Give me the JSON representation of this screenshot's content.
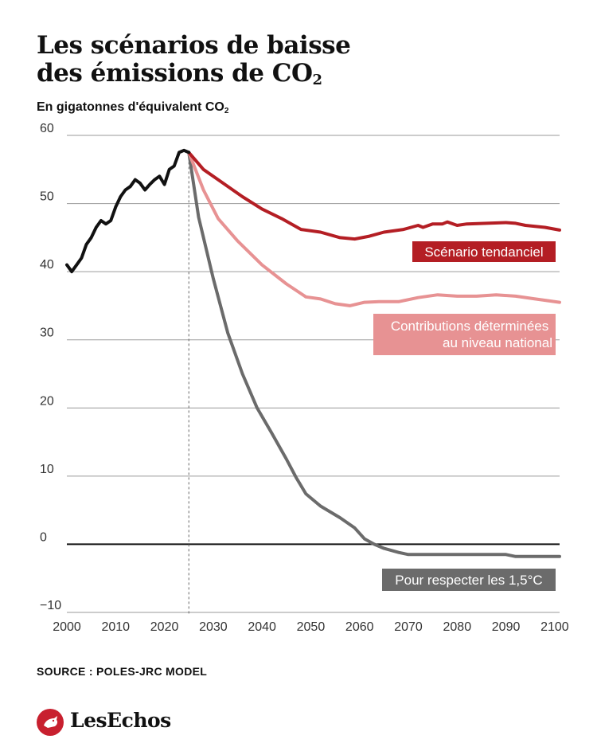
{
  "header": {
    "title_line1": "Les scénarios de baisse",
    "title_line2_main": "des émissions de CO",
    "title_line2_sub": "2",
    "subtitle_main": "En gigatonnes d'équivalent CO",
    "subtitle_sub": "2"
  },
  "source": "SOURCE : POLES-JRC MODEL",
  "brand": {
    "name": "LesEchos",
    "color": "#c8202f"
  },
  "chart_data": {
    "type": "line",
    "ylim": [
      -10,
      60
    ],
    "xlim": [
      2000,
      2101
    ],
    "x_ticks": [
      "2000",
      "2010",
      "2020",
      "2030",
      "2040",
      "2050",
      "2060",
      "2070",
      "2080",
      "2090",
      "2100"
    ],
    "y_ticks": [
      "60",
      "50",
      "40",
      "30",
      "20",
      "10",
      "0",
      "−10"
    ],
    "grid": true,
    "reference_year": 2025,
    "series": [
      {
        "key": "historique",
        "color": "#111111",
        "points": [
          [
            2000,
            41
          ],
          [
            2001,
            40
          ],
          [
            2002,
            41
          ],
          [
            2003,
            42
          ],
          [
            2004,
            44
          ],
          [
            2005,
            45
          ],
          [
            2006,
            46.5
          ],
          [
            2007,
            47.5
          ],
          [
            2008,
            47
          ],
          [
            2009,
            47.5
          ],
          [
            2010,
            49.5
          ],
          [
            2011,
            51
          ],
          [
            2012,
            52
          ],
          [
            2013,
            52.5
          ],
          [
            2014,
            53.5
          ],
          [
            2015,
            53
          ],
          [
            2016,
            52
          ],
          [
            2017,
            52.8
          ],
          [
            2018,
            53.5
          ],
          [
            2019,
            54
          ],
          [
            2020,
            52.8
          ],
          [
            2021,
            55
          ],
          [
            2022,
            55.5
          ],
          [
            2023,
            57.5
          ],
          [
            2024,
            57.8
          ],
          [
            2025,
            57.5
          ]
        ]
      },
      {
        "key": "tendanciel",
        "name": "Scénario tendanciel",
        "color": "#b41e24",
        "points": [
          [
            2025,
            57.5
          ],
          [
            2028,
            55
          ],
          [
            2032,
            53
          ],
          [
            2036,
            51
          ],
          [
            2040,
            49.2
          ],
          [
            2044,
            47.8
          ],
          [
            2048,
            46.2
          ],
          [
            2052,
            45.8
          ],
          [
            2056,
            45
          ],
          [
            2059,
            44.8
          ],
          [
            2062,
            45.2
          ],
          [
            2065,
            45.8
          ],
          [
            2069,
            46.2
          ],
          [
            2072,
            46.8
          ],
          [
            2073,
            46.5
          ],
          [
            2075,
            47
          ],
          [
            2077,
            47
          ],
          [
            2078,
            47.3
          ],
          [
            2080,
            46.8
          ],
          [
            2082,
            47
          ],
          [
            2086,
            47.1
          ],
          [
            2090,
            47.2
          ],
          [
            2092,
            47.1
          ],
          [
            2094,
            46.8
          ],
          [
            2098,
            46.5
          ],
          [
            2101,
            46.1
          ]
        ]
      },
      {
        "key": "cdn",
        "name": "Contributions déterminées au niveau national",
        "color": "#e79293",
        "points": [
          [
            2025,
            57.5
          ],
          [
            2028,
            52
          ],
          [
            2031,
            47.8
          ],
          [
            2035,
            44.5
          ],
          [
            2040,
            41
          ],
          [
            2045,
            38.2
          ],
          [
            2049,
            36.3
          ],
          [
            2052,
            36
          ],
          [
            2055,
            35.3
          ],
          [
            2058,
            35
          ],
          [
            2061,
            35.5
          ],
          [
            2064,
            35.6
          ],
          [
            2068,
            35.6
          ],
          [
            2072,
            36.2
          ],
          [
            2076,
            36.6
          ],
          [
            2080,
            36.4
          ],
          [
            2084,
            36.4
          ],
          [
            2088,
            36.6
          ],
          [
            2092,
            36.4
          ],
          [
            2096,
            36
          ],
          [
            2101,
            35.5
          ]
        ]
      },
      {
        "key": "1p5",
        "name": "Pour respecter les 1,5°C",
        "color": "#6b6b6b",
        "points": [
          [
            2025,
            57.5
          ],
          [
            2027,
            48
          ],
          [
            2030,
            39
          ],
          [
            2033,
            31
          ],
          [
            2036,
            25
          ],
          [
            2039,
            20
          ],
          [
            2042,
            16.3
          ],
          [
            2045,
            12.5
          ],
          [
            2047,
            9.8
          ],
          [
            2049,
            7.4
          ],
          [
            2052,
            5.6
          ],
          [
            2056,
            3.9
          ],
          [
            2059,
            2.4
          ],
          [
            2061,
            0.8
          ],
          [
            2063,
            0
          ],
          [
            2065,
            -0.6
          ],
          [
            2068,
            -1.2
          ],
          [
            2070,
            -1.5
          ],
          [
            2075,
            -1.5
          ],
          [
            2080,
            -1.5
          ],
          [
            2085,
            -1.5
          ],
          [
            2090,
            -1.5
          ],
          [
            2092,
            -1.8
          ],
          [
            2096,
            -1.8
          ],
          [
            2101,
            -1.8
          ]
        ]
      }
    ]
  }
}
